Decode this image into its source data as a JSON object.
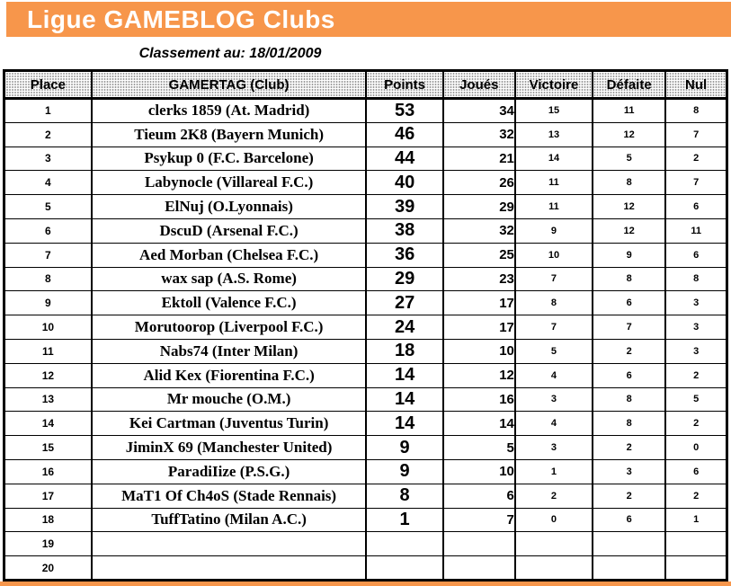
{
  "banner": {
    "title": "Ligue GAMEBLOG Clubs",
    "bg_color": "#F7964B",
    "text_color": "#FFFFFF"
  },
  "subtitle": "Classement au: 18/01/2009",
  "table": {
    "columns": [
      "Place",
      "GAMERTAG (Club)",
      "Points",
      "Joués",
      "Victoire",
      "Défaite",
      "Nul"
    ],
    "rows": [
      {
        "place": "1",
        "gamertag": "clerks 1859 (At. Madrid)",
        "points": "53",
        "joues": "34",
        "victoire": "15",
        "defaite": "11",
        "nul": "8"
      },
      {
        "place": "2",
        "gamertag": "Tieum 2K8 (Bayern Munich)",
        "points": "46",
        "joues": "32",
        "victoire": "13",
        "defaite": "12",
        "nul": "7"
      },
      {
        "place": "3",
        "gamertag": "Psykup 0 (F.C. Barcelone)",
        "points": "44",
        "joues": "21",
        "victoire": "14",
        "defaite": "5",
        "nul": "2"
      },
      {
        "place": "4",
        "gamertag": "Labynocle (Villareal F.C.)",
        "points": "40",
        "joues": "26",
        "victoire": "11",
        "defaite": "8",
        "nul": "7"
      },
      {
        "place": "5",
        "gamertag": "ElNuj (O.Lyonnais)",
        "points": "39",
        "joues": "29",
        "victoire": "11",
        "defaite": "12",
        "nul": "6"
      },
      {
        "place": "6",
        "gamertag": "DscuD (Arsenal F.C.)",
        "points": "38",
        "joues": "32",
        "victoire": "9",
        "defaite": "12",
        "nul": "11"
      },
      {
        "place": "7",
        "gamertag": "Aed Morban (Chelsea F.C.)",
        "points": "36",
        "joues": "25",
        "victoire": "10",
        "defaite": "9",
        "nul": "6"
      },
      {
        "place": "8",
        "gamertag": "wax sap (A.S. Rome)",
        "points": "29",
        "joues": "23",
        "victoire": "7",
        "defaite": "8",
        "nul": "8"
      },
      {
        "place": "9",
        "gamertag": "Ektoll (Valence F.C.)",
        "points": "27",
        "joues": "17",
        "victoire": "8",
        "defaite": "6",
        "nul": "3"
      },
      {
        "place": "10",
        "gamertag": "Morutoorop (Liverpool F.C.)",
        "points": "24",
        "joues": "17",
        "victoire": "7",
        "defaite": "7",
        "nul": "3"
      },
      {
        "place": "11",
        "gamertag": "Nabs74 (Inter Milan)",
        "points": "18",
        "joues": "10",
        "victoire": "5",
        "defaite": "2",
        "nul": "3"
      },
      {
        "place": "12",
        "gamertag": "Alid Kex (Fiorentina F.C.)",
        "points": "14",
        "joues": "12",
        "victoire": "4",
        "defaite": "6",
        "nul": "2"
      },
      {
        "place": "13",
        "gamertag": "Mr mouche (O.M.)",
        "points": "14",
        "joues": "16",
        "victoire": "3",
        "defaite": "8",
        "nul": "5"
      },
      {
        "place": "14",
        "gamertag": "Kei Cartman (Juventus Turin)",
        "points": "14",
        "joues": "14",
        "victoire": "4",
        "defaite": "8",
        "nul": "2"
      },
      {
        "place": "15",
        "gamertag": "JiminX 69 (Manchester United)",
        "points": "9",
        "joues": "5",
        "victoire": "3",
        "defaite": "2",
        "nul": "0"
      },
      {
        "place": "16",
        "gamertag": "ParadiIize (P.S.G.)",
        "points": "9",
        "joues": "10",
        "victoire": "1",
        "defaite": "3",
        "nul": "6"
      },
      {
        "place": "17",
        "gamertag": "MaT1 Of Ch4oS (Stade Rennais)",
        "points": "8",
        "joues": "6",
        "victoire": "2",
        "defaite": "2",
        "nul": "2"
      },
      {
        "place": "18",
        "gamertag": "TuffTatino (Milan A.C.)",
        "points": "1",
        "joues": "7",
        "victoire": "0",
        "defaite": "6",
        "nul": "1"
      },
      {
        "place": "19",
        "gamertag": "",
        "points": "",
        "joues": "",
        "victoire": "",
        "defaite": "",
        "nul": ""
      },
      {
        "place": "20",
        "gamertag": "",
        "points": "",
        "joues": "",
        "victoire": "",
        "defaite": "",
        "nul": ""
      }
    ]
  },
  "colors": {
    "accent_orange": "#F7964B",
    "border_black": "#000000"
  }
}
